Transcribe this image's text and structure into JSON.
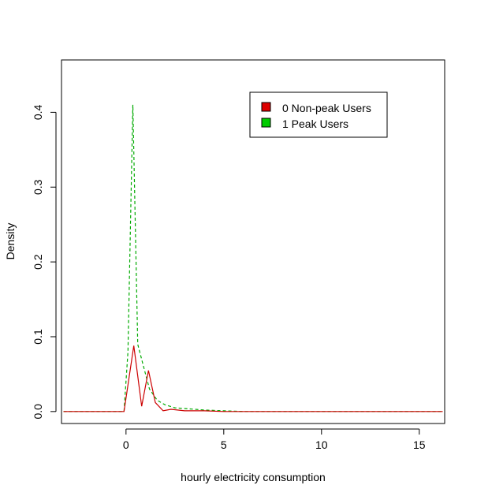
{
  "chart_data": {
    "type": "line",
    "title": "",
    "xlabel": "hourly electricity consumption",
    "ylabel": "Density",
    "xlim": [
      -3.3,
      16.3
    ],
    "ylim": [
      -0.016,
      0.47
    ],
    "x_ticks": [
      0,
      5,
      10,
      15
    ],
    "x_tick_labels": [
      "0",
      "5",
      "10",
      "15"
    ],
    "y_ticks": [
      0.0,
      0.1,
      0.2,
      0.3,
      0.4
    ],
    "y_tick_labels": [
      "0.0",
      "0.1",
      "0.2",
      "0.3",
      "0.4"
    ],
    "grid": false,
    "legend_position": "top-right",
    "series": [
      {
        "name": "0 Non-peak Users",
        "color": "#cc0000",
        "line_style": "solid",
        "x": [
          -3.2,
          -0.1,
          0.4,
          0.8,
          1.15,
          1.5,
          1.9,
          2.3,
          3,
          4,
          5,
          6,
          16.2
        ],
        "y": [
          0.0,
          0.0,
          0.088,
          0.007,
          0.055,
          0.012,
          0.001,
          0.003,
          0.001,
          0.001,
          0.0,
          0.0,
          0.0
        ]
      },
      {
        "name": "1 Peak Users",
        "color": "#00aa00",
        "line_style": "dashed",
        "x": [
          -3.2,
          -0.1,
          0.1,
          0.35,
          0.6,
          0.9,
          1.2,
          1.6,
          2.0,
          2.5,
          3,
          4,
          5,
          6,
          16.2
        ],
        "y": [
          0.0,
          0.0,
          0.08,
          0.41,
          0.09,
          0.06,
          0.03,
          0.015,
          0.009,
          0.005,
          0.004,
          0.002,
          0.001,
          0.0,
          0.0
        ]
      }
    ],
    "legend": {
      "entries": [
        {
          "label": "0 Non-peak Users",
          "color": "#dd0000"
        },
        {
          "label": "1 Peak Users",
          "color": "#00cc00"
        }
      ]
    }
  }
}
